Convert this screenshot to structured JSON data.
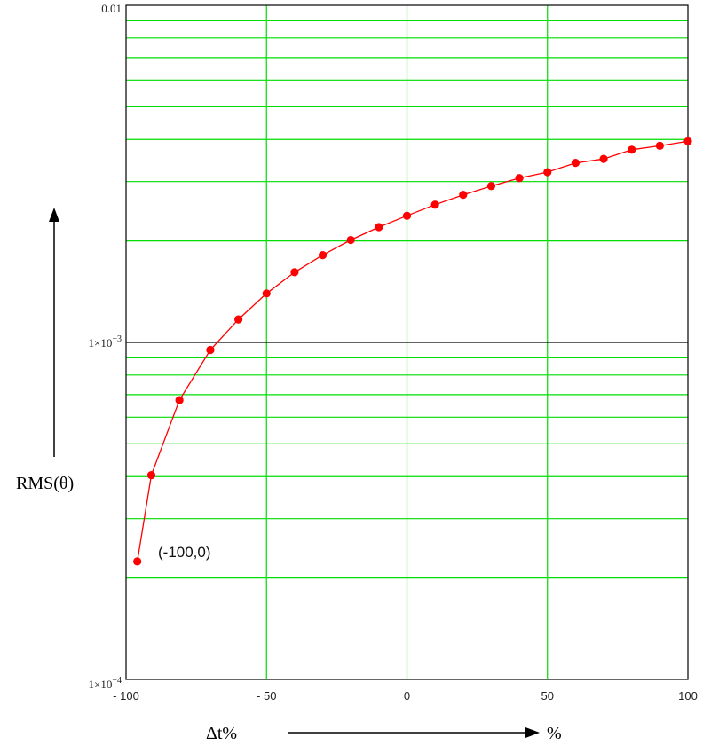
{
  "chart_data": {
    "type": "line",
    "x_scale": "linear",
    "y_scale": "log",
    "xlim": [
      -100,
      100
    ],
    "ylim": [
      0.0001,
      0.01
    ],
    "grid": true,
    "xlabel": "Δt%",
    "xunit": "%",
    "ylabel": "RMS(θ)",
    "x_ticks": [
      -100,
      -50,
      0,
      50,
      100
    ],
    "x_tick_labels": [
      "- 100",
      "- 50",
      "0",
      "50",
      "100"
    ],
    "y_tick_labels": {
      "top": "0.01",
      "mid_base": "1×10",
      "mid_exp": "−3",
      "bottom_base": "1×10",
      "bottom_exp": "−4"
    },
    "annotation": "(-100,0)",
    "colors": {
      "grid": "#00dd00",
      "reference_line": "#000000",
      "series": "#ff0000"
    },
    "series": [
      {
        "x": [
          -96,
          -91,
          -81,
          -70,
          -60,
          -50,
          -40,
          -30,
          -20,
          -10,
          0,
          10,
          20,
          30,
          40,
          50,
          60,
          70,
          80,
          90,
          100
        ],
        "y": [
          0.000224,
          0.000404,
          0.000674,
          0.00095,
          0.00117,
          0.001397,
          0.001615,
          0.001815,
          0.002013,
          0.002198,
          0.002375,
          0.002562,
          0.00274,
          0.00291,
          0.003072,
          0.0032,
          0.003408,
          0.003502,
          0.003729,
          0.00383,
          0.00395
        ]
      }
    ]
  }
}
